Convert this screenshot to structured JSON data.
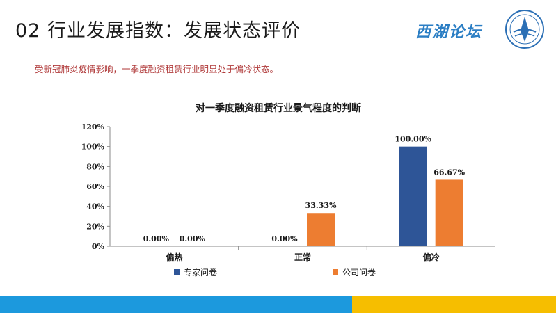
{
  "page": {
    "title": "02 行业发展指数：发展状态评价",
    "subtitle": "受新冠肺炎疫情影响，一季度融资租赁行业明显处于偏冷状态。",
    "logo_text": "西湖论坛",
    "colors": {
      "accent_blue": "#1c99dd",
      "accent_yellow": "#f6be00",
      "subtitle": "#b03a3a"
    }
  },
  "chart_data": {
    "type": "bar",
    "title": "对一季度融资租赁行业景气程度的判断",
    "xlabel": "",
    "ylabel": "",
    "categories": [
      "偏热",
      "正常",
      "偏冷"
    ],
    "series": [
      {
        "name": "专家问卷",
        "values": [
          0.0,
          0.0,
          100.0
        ],
        "labels": [
          "0.00%",
          "0.00%",
          "100.00%"
        ],
        "color": "#2e5597"
      },
      {
        "name": "公司问卷",
        "values": [
          0.0,
          33.33,
          66.67
        ],
        "labels": [
          "0.00%",
          "33.33%",
          "66.67%"
        ],
        "color": "#ed7d31"
      }
    ],
    "ylim": [
      0,
      120
    ],
    "yticks": [
      0,
      20,
      40,
      60,
      80,
      100,
      120
    ],
    "ytick_labels": [
      "0%",
      "20%",
      "40%",
      "60%",
      "80%",
      "100%",
      "120%"
    ],
    "grid": false,
    "legend": "bottom"
  }
}
